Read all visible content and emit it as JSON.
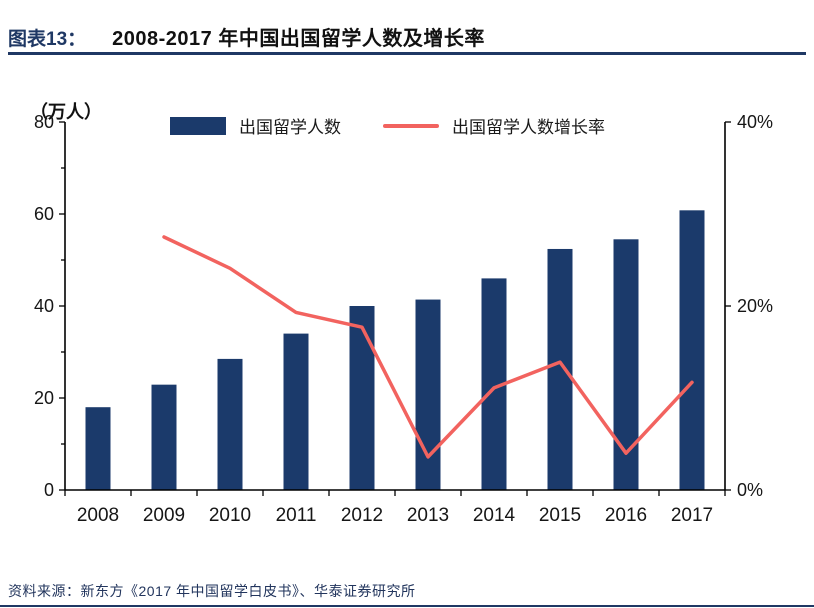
{
  "header": {
    "label": "图表13：",
    "title": "2008-2017 年中国出国留学人数及增长率"
  },
  "chart_data": {
    "type": "combo-bar-line",
    "title": "2008-2017 年中国出国留学人数及增长率",
    "categories": [
      "2008",
      "2009",
      "2010",
      "2011",
      "2012",
      "2013",
      "2014",
      "2015",
      "2016",
      "2017"
    ],
    "series": [
      {
        "name": "出国留学人数",
        "type": "bar",
        "axis": "left",
        "unit": "万人",
        "color": "#1b3a6b",
        "values": [
          18.0,
          22.9,
          28.5,
          34.0,
          40.0,
          41.4,
          46.0,
          52.4,
          54.5,
          60.8
        ]
      },
      {
        "name": "出国留学人数增长率",
        "type": "line",
        "axis": "right",
        "unit": "%",
        "color": "#f2635f",
        "values": [
          null,
          27.5,
          24.1,
          19.3,
          17.7,
          3.6,
          11.1,
          13.9,
          4.0,
          11.7
        ]
      }
    ],
    "xlabel": "",
    "ylabel": "（万人）",
    "left_axis": {
      "label": "（万人）",
      "min": 0,
      "max": 80,
      "ticks": [
        0,
        20,
        40,
        60,
        80
      ]
    },
    "right_axis": {
      "min": 0,
      "max": 40,
      "ticks": [
        "0%",
        "20%",
        "40%"
      ]
    },
    "legend_position": "top-center",
    "grid": false
  },
  "footer": {
    "source_label": "资料来源：",
    "source_text": "新东方《2017 年中国留学白皮书》、华泰证券研究所"
  }
}
